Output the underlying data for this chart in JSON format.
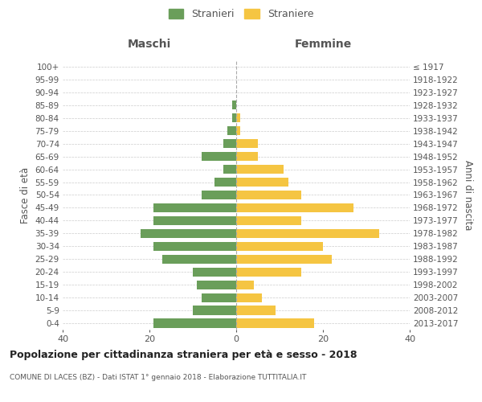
{
  "age_groups": [
    "0-4",
    "5-9",
    "10-14",
    "15-19",
    "20-24",
    "25-29",
    "30-34",
    "35-39",
    "40-44",
    "45-49",
    "50-54",
    "55-59",
    "60-64",
    "65-69",
    "70-74",
    "75-79",
    "80-84",
    "85-89",
    "90-94",
    "95-99",
    "100+"
  ],
  "birth_years": [
    "2013-2017",
    "2008-2012",
    "2003-2007",
    "1998-2002",
    "1993-1997",
    "1988-1992",
    "1983-1987",
    "1978-1982",
    "1973-1977",
    "1968-1972",
    "1963-1967",
    "1958-1962",
    "1953-1957",
    "1948-1952",
    "1943-1947",
    "1938-1942",
    "1933-1937",
    "1928-1932",
    "1923-1927",
    "1918-1922",
    "≤ 1917"
  ],
  "maschi": [
    19,
    10,
    8,
    9,
    10,
    17,
    19,
    22,
    19,
    19,
    8,
    5,
    3,
    8,
    3,
    2,
    1,
    1,
    0,
    0,
    0
  ],
  "femmine": [
    18,
    9,
    6,
    4,
    15,
    22,
    20,
    33,
    15,
    27,
    15,
    12,
    11,
    5,
    5,
    1,
    1,
    0,
    0,
    0,
    0
  ],
  "color_maschi": "#6a9e5a",
  "color_femmine": "#f5c542",
  "xlabel_left": "Maschi",
  "xlabel_right": "Femmine",
  "ylabel_left": "Fasce di età",
  "ylabel_right": "Anni di nascita",
  "title": "Popolazione per cittadinanza straniera per età e sesso - 2018",
  "subtitle": "COMUNE DI LACES (BZ) - Dati ISTAT 1° gennaio 2018 - Elaborazione TUTTITALIA.IT",
  "legend_maschi": "Stranieri",
  "legend_femmine": "Straniere",
  "xlim": 40,
  "background_color": "#ffffff",
  "grid_color": "#cccccc",
  "tick_color": "#888888",
  "label_color": "#555555"
}
